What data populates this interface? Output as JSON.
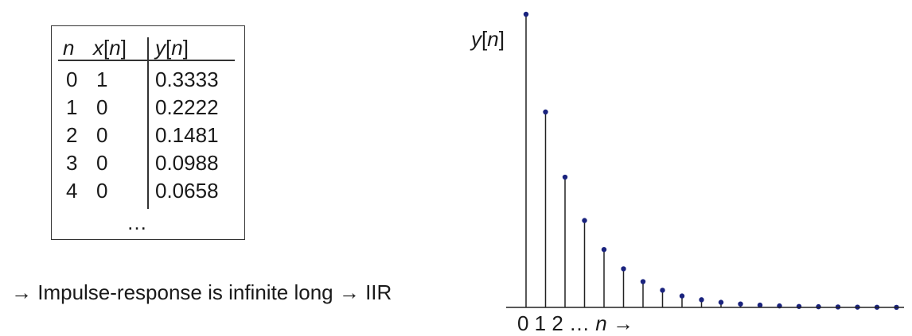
{
  "table": {
    "headers": {
      "n": "n",
      "x": "x",
      "x_br_open": "[",
      "x_n": "n",
      "x_br_close": "]",
      "y": "y",
      "y_br_open": "[",
      "y_n": "n",
      "y_br_close": "]"
    },
    "rows": [
      {
        "n": "0",
        "x": "1",
        "y": "0.3333"
      },
      {
        "n": "1",
        "x": "0",
        "y": "0.2222"
      },
      {
        "n": "2",
        "x": "0",
        "y": "0.1481"
      },
      {
        "n": "3",
        "x": "0",
        "y": "0.0988"
      },
      {
        "n": "4",
        "x": "0",
        "y": "0.0658"
      }
    ],
    "ellipsis": "…"
  },
  "caption": "→ Impulse-response is infinite long → IIR",
  "plot": {
    "ylabel_var": "y",
    "ylabel_br_open": "[",
    "ylabel_n": "n",
    "ylabel_br_close": "]",
    "x_ticks": "0 1 2 …",
    "x_n": "n",
    "x_arrow": "→"
  },
  "chart_data": {
    "type": "stem",
    "x": [
      0,
      1,
      2,
      3,
      4,
      5,
      6,
      7,
      8,
      9,
      10,
      11,
      12,
      13,
      14,
      15,
      16,
      17,
      18,
      19
    ],
    "values": [
      0.3333,
      0.2222,
      0.1481,
      0.0988,
      0.0658,
      0.0439,
      0.0293,
      0.0195,
      0.013,
      0.0087,
      0.0058,
      0.0039,
      0.0026,
      0.0017,
      0.0011,
      0.0008,
      0.0005,
      0.0003,
      0.0002,
      0.0001
    ],
    "ylabel": "y[n]",
    "xlabel": "n",
    "marker_color": "#1a237e"
  }
}
